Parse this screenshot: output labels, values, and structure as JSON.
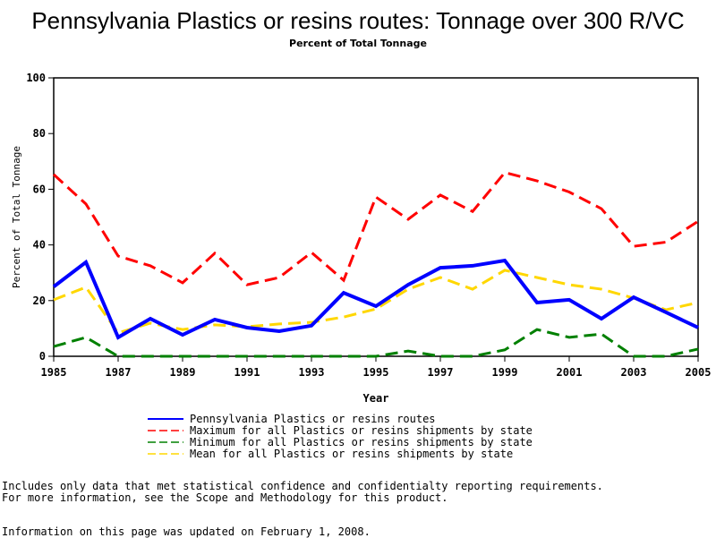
{
  "chart_data": {
    "type": "line",
    "title": "Pennsylvania Plastics or resins routes: Tonnage over 300 R/VC",
    "subtitle": "Percent of Total Tonnage",
    "xlabel": "Year",
    "ylabel": "Percent of Total Tonnage",
    "xlim": [
      1985,
      2005
    ],
    "ylim": [
      0,
      100
    ],
    "xticks": [
      "1985",
      "1987",
      "1989",
      "1991",
      "1993",
      "1995",
      "1997",
      "1999",
      "2001",
      "2003",
      "2005"
    ],
    "yticks": [
      "0",
      "20",
      "40",
      "60",
      "80",
      "100"
    ],
    "x": [
      1985,
      1986,
      1987,
      1988,
      1989,
      1990,
      1991,
      1992,
      1993,
      1994,
      1995,
      1996,
      1997,
      1998,
      1999,
      2000,
      2001,
      2002,
      2003,
      2004,
      2005
    ],
    "series": [
      {
        "name": "Pennsylvania Plastics or resins routes",
        "color": "#0000ff",
        "style": "solid",
        "values": [
          25,
          33.8,
          6.8,
          13.5,
          7.7,
          13.2,
          10.3,
          9,
          11,
          22.8,
          18,
          25.7,
          31.8,
          32.5,
          34.4,
          19.3,
          20.3,
          13.5,
          21.2,
          15.8,
          10.3
        ]
      },
      {
        "name": "Maximum for all Plastics or resins shipments by state",
        "color": "#ff0000",
        "style": "dashed",
        "values": [
          65.3,
          54.7,
          36,
          32.5,
          26.4,
          37,
          25.7,
          28.3,
          37.3,
          27.3,
          57.2,
          49.2,
          57.9,
          52,
          66,
          63,
          59,
          53,
          39.5,
          41,
          48.5
        ]
      },
      {
        "name": "Minimum for all Plastics or resins shipments by state",
        "color": "#008000",
        "style": "dashed",
        "values": [
          3.5,
          6.8,
          0,
          0,
          0,
          0,
          0,
          0,
          0,
          0,
          0,
          1.9,
          0,
          0,
          2.3,
          9.6,
          6.8,
          8,
          0,
          0,
          2.6
        ]
      },
      {
        "name": "Mean for all Plastics or resins shipments by state",
        "color": "#ffd700",
        "style": "dashed",
        "values": [
          20.3,
          24.8,
          8.4,
          11.9,
          9.6,
          11.3,
          10.6,
          11.6,
          12.2,
          14.1,
          17,
          24.1,
          28.3,
          24.1,
          30.9,
          28.3,
          25.7,
          24.1,
          20.9,
          16.7,
          19.3
        ]
      }
    ],
    "legend_position": "bottom",
    "grid": false
  },
  "notes": [
    "Includes only data that met statistical confidence and confidentialty reporting requirements.",
    "For more information, see the Scope and Methodology for this product.",
    "Information on this page was updated on February 1, 2008."
  ]
}
